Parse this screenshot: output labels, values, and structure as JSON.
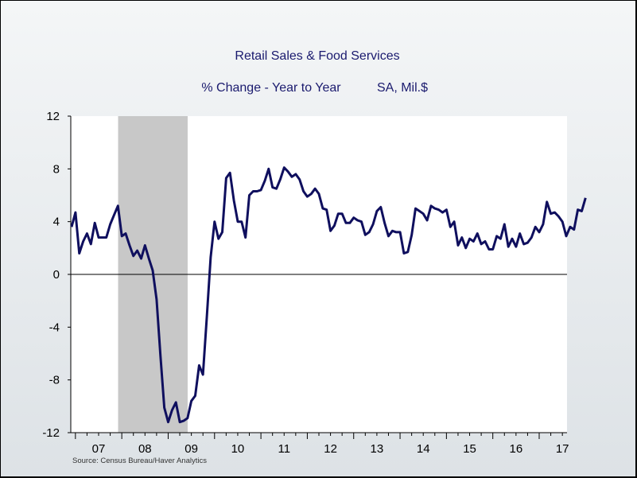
{
  "chart_data": {
    "type": "line",
    "title": "Retail Sales & Food Services",
    "subtitle": "% Change - Year to Year",
    "units_note": "SA, Mil.$",
    "source": "Source:  Census Bureau/Haver Analytics",
    "ylim": [
      -12,
      12
    ],
    "y_ticks": [
      12,
      8,
      4,
      0,
      -4,
      -8,
      -12
    ],
    "x_tick_labels": [
      "07",
      "08",
      "09",
      "10",
      "11",
      "12",
      "13",
      "14",
      "15",
      "16",
      "17"
    ],
    "x_range_years": [
      2006.9,
      2017.6
    ],
    "recession_shading": [
      2007.92,
      2009.42
    ],
    "colors": {
      "line": "#0f0f5e",
      "recession": "#c8c8c8",
      "plot_bg": "#ffffff"
    },
    "series": [
      {
        "name": "Retail Sales & Food Services % Change Y/Y",
        "start": 2006.917,
        "step_months": 1,
        "values": [
          3.6,
          4.7,
          1.6,
          2.5,
          3.1,
          2.3,
          3.9,
          2.8,
          2.8,
          2.8,
          3.8,
          4.5,
          5.2,
          2.9,
          3.1,
          2.2,
          1.4,
          1.8,
          1.2,
          2.2,
          1.2,
          0.3,
          -1.9,
          -6.2,
          -10.1,
          -11.2,
          -10.3,
          -9.7,
          -11.2,
          -11.1,
          -10.9,
          -9.6,
          -9.2,
          -6.9,
          -7.6,
          -3.2,
          1.3,
          4.0,
          2.7,
          3.2,
          7.3,
          7.7,
          5.6,
          4.0,
          4.0,
          2.8,
          6.0,
          6.3,
          6.3,
          6.4,
          7.1,
          8.0,
          6.6,
          6.5,
          7.2,
          8.1,
          7.8,
          7.4,
          7.6,
          7.2,
          6.3,
          5.9,
          6.1,
          6.5,
          6.1,
          5.0,
          4.9,
          3.3,
          3.7,
          4.6,
          4.6,
          3.9,
          3.9,
          4.3,
          4.1,
          4.0,
          3.0,
          3.2,
          3.8,
          4.8,
          5.1,
          3.9,
          2.9,
          3.3,
          3.2,
          3.2,
          1.6,
          1.7,
          3.0,
          5.0,
          4.8,
          4.6,
          4.1,
          5.2,
          5.0,
          4.9,
          4.7,
          4.9,
          3.6,
          4.0,
          2.2,
          2.8,
          2.0,
          2.7,
          2.5,
          3.1,
          2.3,
          2.5,
          1.9,
          1.9,
          2.9,
          2.7,
          3.8,
          2.1,
          2.7,
          2.1,
          3.1,
          2.3,
          2.4,
          2.8,
          3.6,
          3.2,
          3.8,
          5.5,
          4.6,
          4.7,
          4.4,
          4.0,
          2.9,
          3.6,
          3.4,
          4.9,
          4.8,
          5.8
        ]
      }
    ]
  }
}
